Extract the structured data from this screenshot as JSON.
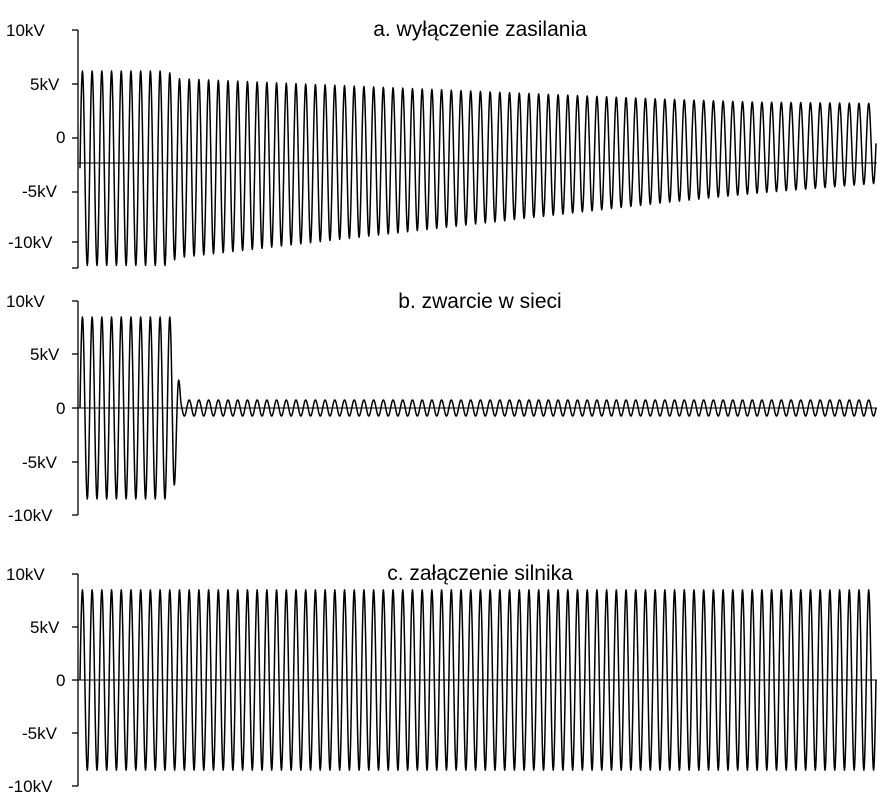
{
  "chart_data": [
    {
      "type": "line",
      "title": "a. wyłączenie zasilania",
      "y_tick_labels": [
        "10kV",
        "5kV",
        "0",
        "-5kV",
        "-10kV"
      ],
      "y_tick_values": [
        10,
        5,
        0,
        -5,
        -10
      ],
      "ylim": [
        -12,
        10
      ],
      "unit": "kV",
      "cycles": 82,
      "series": [
        {
          "amplitude_kv": [
            [
              0,
              9.0
            ],
            [
              9,
              9.0
            ],
            [
              10,
              8.3
            ],
            [
              20,
              7.6
            ],
            [
              30,
              6.9
            ],
            [
              40,
              6.2
            ],
            [
              50,
              5.5
            ],
            [
              60,
              4.8
            ],
            [
              70,
              4.2
            ],
            [
              82,
              3.7
            ]
          ],
          "offset_kv": [
            [
              0,
              -2.8
            ],
            [
              9,
              -2.8
            ],
            [
              10,
              -2.8
            ],
            [
              82,
              -0.5
            ]
          ]
        }
      ],
      "grid": false
    },
    {
      "type": "line",
      "title": "b. zwarcie w sieci",
      "y_tick_labels": [
        "10kV",
        "5kV",
        "0",
        "-5kV",
        "-10kV"
      ],
      "y_tick_values": [
        10,
        5,
        0,
        -5,
        -10
      ],
      "ylim": [
        -10,
        10
      ],
      "unit": "kV",
      "cycles": 82,
      "series": [
        {
          "amplitude_kv": [
            [
              0,
              8.5
            ],
            [
              9.6,
              8.5
            ],
            [
              10.4,
              0.75
            ],
            [
              82,
              0.75
            ]
          ],
          "offset_kv": [
            [
              0,
              0.0
            ],
            [
              82,
              0.0
            ]
          ]
        }
      ],
      "grid": false
    },
    {
      "type": "line",
      "title": "c. załączenie silnika",
      "y_tick_labels": [
        "10kV",
        "5kV",
        "0",
        "-5kV",
        "-10kV"
      ],
      "y_tick_values": [
        10,
        5,
        0,
        -5,
        -10
      ],
      "ylim": [
        -10,
        10
      ],
      "unit": "kV",
      "cycles": 82,
      "series": [
        {
          "amplitude_kv": [
            [
              0,
              8.5
            ],
            [
              82,
              8.5
            ]
          ],
          "offset_kv": [
            [
              0,
              0.0
            ],
            [
              82,
              0.0
            ]
          ]
        }
      ],
      "grid": false
    }
  ]
}
